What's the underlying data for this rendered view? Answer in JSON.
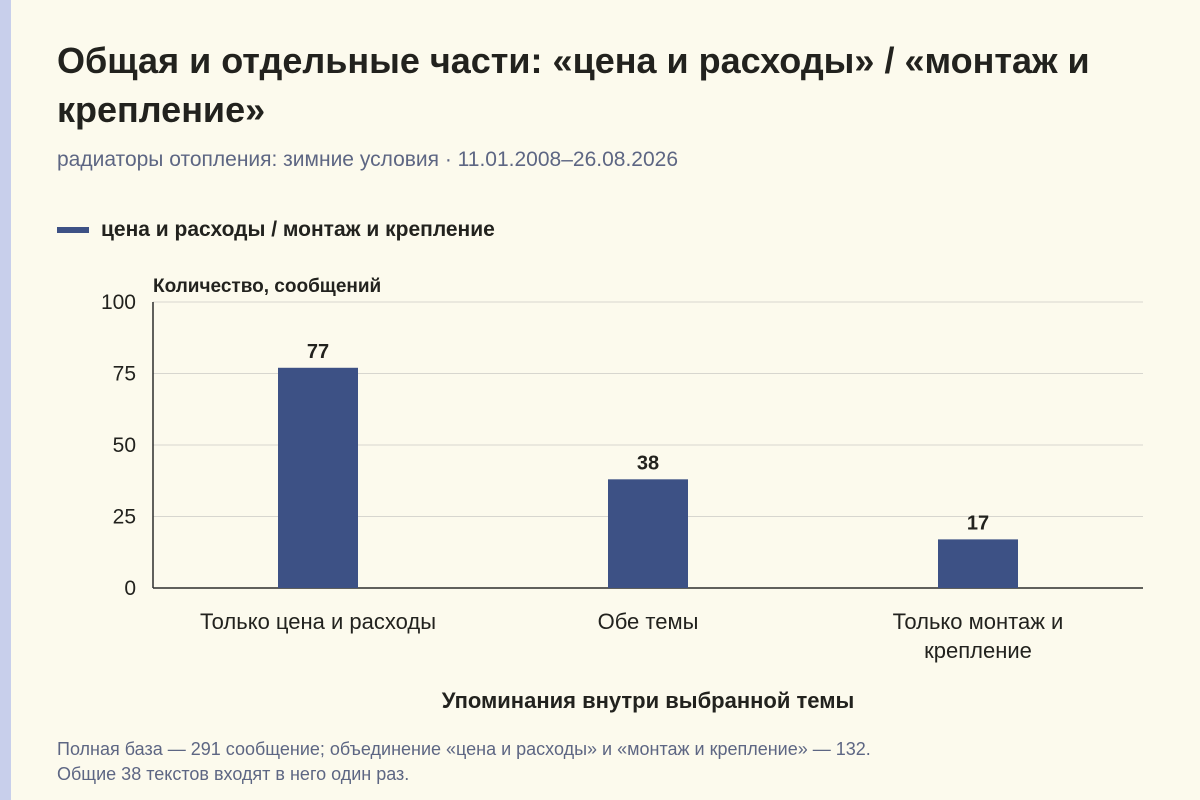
{
  "title": "Общая и отдельные части: «цена и расходы» / «монтаж и крепление»",
  "subtitle": "радиаторы отопления: зимние условия · 11.01.2008–26.08.2026",
  "footnote_lines": [
    "Полная база — 291 сообщение; объединение «цена и расходы» и «монтаж и крепление» — 132.",
    "Общие 38 текстов входят в него один раз."
  ],
  "colors": {
    "background": "#fcfaed",
    "bar": "#3d5185",
    "accent_strip": "#c8cfeb",
    "text": "#22221e",
    "muted_text": "#5d6683",
    "gridline": "#d7d6cf",
    "axis": "#2c2c2c"
  },
  "chart_data": {
    "type": "bar",
    "title": "Общая и отдельные части: «цена и расходы» / «монтаж и крепление»",
    "categories": [
      [
        "Только цена и расходы"
      ],
      [
        "Обе темы"
      ],
      [
        "Только монтаж и",
        "крепление"
      ]
    ],
    "series": [
      {
        "name": "цена и расходы / монтаж и крепление",
        "values": [
          77,
          38,
          17
        ]
      }
    ],
    "data_labels": [
      "77",
      "38",
      "17"
    ],
    "xlabel": "Упоминания внутри выбранной темы",
    "ylabel": "Количество, сообщений",
    "ylim": [
      0,
      100
    ],
    "yticks": [
      0,
      25,
      50,
      75,
      100
    ],
    "grid": true,
    "legend_position": "top-left"
  }
}
